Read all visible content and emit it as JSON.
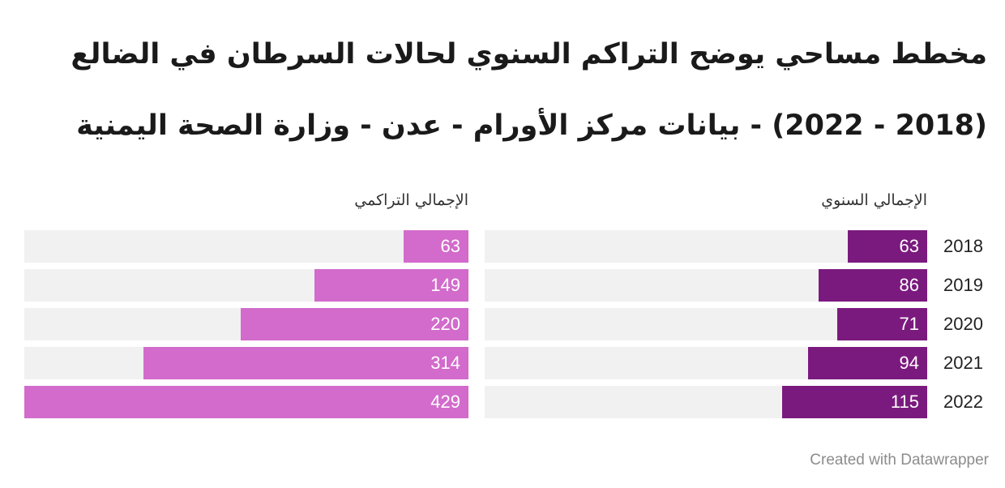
{
  "header": {
    "title_line_1": "مخطط مساحي يوضح التراكم السنوي لحالات السرطان في الضالع",
    "title_line_2": "(2018 - 2022) - بيانات مركز الأورام - عدن - وزارة الصحة اليمنية"
  },
  "chart_data": {
    "type": "bar",
    "orientation": "horizontal",
    "categories": [
      "2018",
      "2019",
      "2020",
      "2021",
      "2022"
    ],
    "series": [
      {
        "name": "الإجمالي السنوي",
        "values": [
          63,
          86,
          71,
          94,
          115
        ],
        "color": "#7b1a7e"
      },
      {
        "name": "الإجمالي التراكمي",
        "values": [
          63,
          149,
          220,
          314,
          429
        ],
        "color": "#d26bcb"
      }
    ],
    "track_color": "#f1f1f1",
    "xlim_annual": [
      0,
      350
    ],
    "xlim_cumulative": [
      0,
      429
    ],
    "grid": false,
    "legend": "none"
  },
  "footer": {
    "credit": "Created with Datawrapper"
  }
}
